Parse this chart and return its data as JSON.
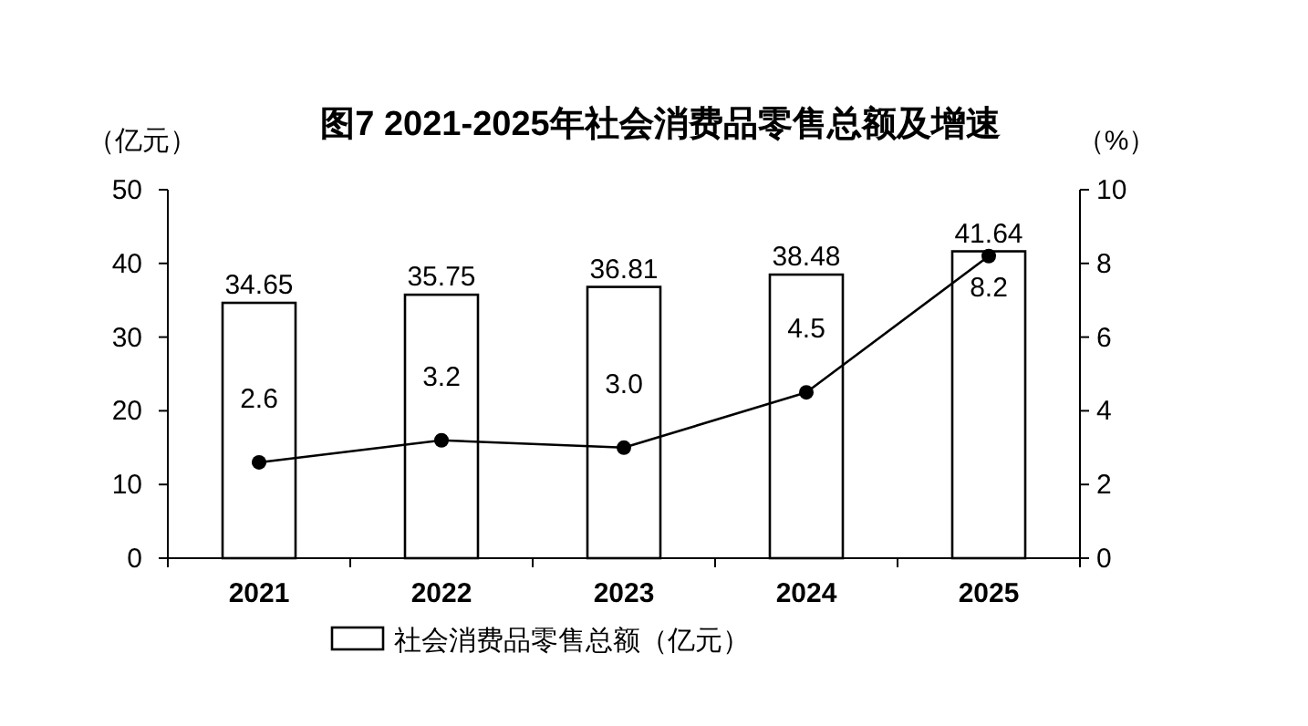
{
  "chart_data": {
    "type": "bar",
    "title": "图7  2021-2025年社会消费品零售总额及增速",
    "ylabel": "（亿元）",
    "y2label": "（%）",
    "categories": [
      "2021",
      "2022",
      "2023",
      "2024",
      "2025"
    ],
    "series": [
      {
        "name": "社会消费品零售总额（亿元）",
        "color": "#ffffff",
        "values": [
          34.65,
          35.75,
          36.81,
          38.48,
          41.64
        ],
        "value_labels": [
          "34.65",
          "35.75",
          "36.81",
          "38.48",
          "41.64"
        ]
      },
      {
        "type": "line",
        "axis": "y2",
        "color": "#000000",
        "marker": "circle",
        "values": [
          2.6,
          3.2,
          3.0,
          4.5,
          8.2
        ],
        "value_labels": [
          "2.6",
          "3.2",
          "3.0",
          "4.5",
          "8.2"
        ]
      }
    ],
    "ylim": [
      0,
      50
    ],
    "yticks": [
      0,
      10,
      20,
      30,
      40,
      50
    ],
    "y2lim": [
      0,
      10
    ],
    "y2ticks": [
      0,
      2,
      4,
      6,
      8,
      10
    ],
    "legend": "bottom",
    "grid": false
  }
}
